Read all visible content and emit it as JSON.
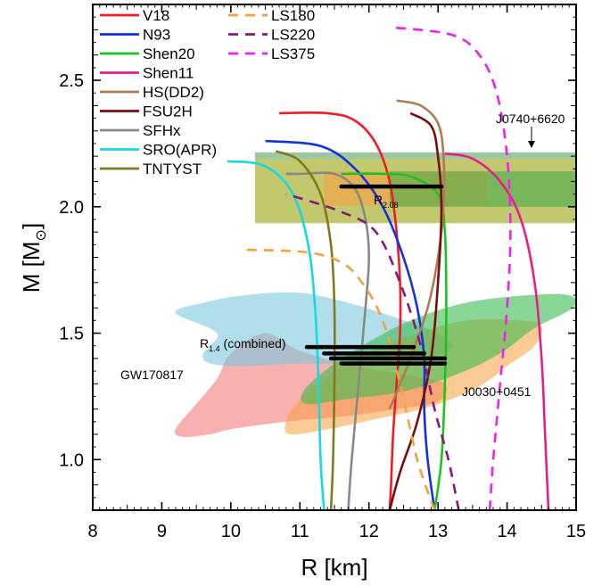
{
  "chart_data": {
    "type": "line",
    "xlabel": "R [km]",
    "ylabel": "M [M",
    "ylabel_sub": "⊙",
    "ylabel_close": "]",
    "xlim": [
      8,
      15
    ],
    "ylim": [
      0.8,
      2.8
    ],
    "xticks": [
      "8",
      "9",
      "10",
      "11",
      "12",
      "13",
      "14",
      "15"
    ],
    "yticks": [
      "1.0",
      "1.5",
      "2.0",
      "2.5"
    ],
    "grid": false,
    "legend_placement": "top-left",
    "series": [
      {
        "name": "V18",
        "color": "#ee1c25",
        "dash": "solid",
        "points": [
          [
            12.3,
            0.8
          ],
          [
            12.32,
            0.9
          ],
          [
            12.35,
            1.1
          ],
          [
            12.4,
            1.3
          ],
          [
            12.45,
            1.5
          ],
          [
            12.45,
            1.7
          ],
          [
            12.4,
            1.9
          ],
          [
            12.3,
            2.1
          ],
          [
            12.1,
            2.25
          ],
          [
            11.8,
            2.34
          ],
          [
            11.4,
            2.37
          ],
          [
            10.7,
            2.37
          ]
        ]
      },
      {
        "name": "N93",
        "color": "#1432dc",
        "dash": "solid",
        "points": [
          [
            12.95,
            0.8
          ],
          [
            12.85,
            1.0
          ],
          [
            12.8,
            1.2
          ],
          [
            12.8,
            1.4
          ],
          [
            12.7,
            1.6
          ],
          [
            12.5,
            1.8
          ],
          [
            12.2,
            2.0
          ],
          [
            11.8,
            2.15
          ],
          [
            11.3,
            2.24
          ],
          [
            10.5,
            2.26
          ]
        ]
      },
      {
        "name": "Shen20",
        "color": "#1ec11e",
        "dash": "solid",
        "points": [
          [
            12.95,
            0.8
          ],
          [
            13.05,
            1.0
          ],
          [
            13.1,
            1.3
          ],
          [
            13.12,
            1.6
          ],
          [
            13.1,
            1.9
          ],
          [
            13.0,
            2.05
          ],
          [
            12.6,
            2.12
          ],
          [
            12.2,
            2.13
          ],
          [
            11.6,
            2.13
          ]
        ]
      },
      {
        "name": "Shen11",
        "color": "#e61e8c",
        "dash": "solid",
        "points": [
          [
            14.6,
            0.8
          ],
          [
            14.55,
            1.1
          ],
          [
            14.5,
            1.4
          ],
          [
            14.4,
            1.7
          ],
          [
            14.2,
            1.95
          ],
          [
            13.9,
            2.1
          ],
          [
            13.5,
            2.19
          ],
          [
            13.1,
            2.21
          ]
        ]
      },
      {
        "name": "HS(DD2)",
        "color": "#b07a54",
        "dash": "solid",
        "points": [
          [
            12.3,
            1.2
          ],
          [
            12.6,
            1.4
          ],
          [
            12.85,
            1.6
          ],
          [
            13.0,
            1.8
          ],
          [
            13.08,
            2.0
          ],
          [
            13.08,
            2.2
          ],
          [
            13.0,
            2.33
          ],
          [
            12.75,
            2.4
          ],
          [
            12.4,
            2.42
          ]
        ]
      },
      {
        "name": "FSU2H",
        "color": "#7a0e0e",
        "dash": "solid",
        "points": [
          [
            12.3,
            0.8
          ],
          [
            12.45,
            0.95
          ],
          [
            12.7,
            1.15
          ],
          [
            12.9,
            1.4
          ],
          [
            13.0,
            1.7
          ],
          [
            13.05,
            2.0
          ],
          [
            13.0,
            2.2
          ],
          [
            12.9,
            2.32
          ],
          [
            12.6,
            2.37
          ]
        ]
      },
      {
        "name": "SFHx",
        "color": "#888888",
        "dash": "solid",
        "points": [
          [
            11.7,
            0.8
          ],
          [
            11.75,
            1.0
          ],
          [
            11.85,
            1.3
          ],
          [
            11.95,
            1.6
          ],
          [
            12.0,
            1.8
          ],
          [
            11.95,
            1.95
          ],
          [
            11.8,
            2.07
          ],
          [
            11.5,
            2.13
          ],
          [
            11.0,
            2.13
          ],
          [
            10.8,
            2.13
          ]
        ]
      },
      {
        "name": "SRO(APR)",
        "color": "#1ad6e6",
        "dash": "solid",
        "points": [
          [
            11.35,
            0.8
          ],
          [
            11.3,
            1.0
          ],
          [
            11.27,
            1.3
          ],
          [
            11.22,
            1.6
          ],
          [
            11.12,
            1.85
          ],
          [
            10.9,
            2.05
          ],
          [
            10.5,
            2.16
          ],
          [
            9.95,
            2.18
          ]
        ]
      },
      {
        "name": "TNTYST",
        "color": "#85781a",
        "dash": "solid",
        "points": [
          [
            11.45,
            0.8
          ],
          [
            11.48,
            1.0
          ],
          [
            11.5,
            1.3
          ],
          [
            11.5,
            1.6
          ],
          [
            11.45,
            1.85
          ],
          [
            11.3,
            2.05
          ],
          [
            11.0,
            2.18
          ],
          [
            10.65,
            2.22
          ]
        ]
      },
      {
        "name": "LS180",
        "color": "#f5a040",
        "dash": "dashed",
        "points": [
          [
            12.95,
            0.8
          ],
          [
            12.7,
            1.0
          ],
          [
            12.45,
            1.3
          ],
          [
            12.2,
            1.55
          ],
          [
            11.9,
            1.7
          ],
          [
            11.6,
            1.78
          ],
          [
            11.1,
            1.82
          ],
          [
            10.2,
            1.83
          ]
        ]
      },
      {
        "name": "LS220",
        "color": "#8a1878",
        "dash": "dashed",
        "points": [
          [
            13.3,
            0.8
          ],
          [
            13.15,
            1.0
          ],
          [
            12.95,
            1.2
          ],
          [
            12.75,
            1.45
          ],
          [
            12.45,
            1.7
          ],
          [
            12.1,
            1.9
          ],
          [
            11.6,
            1.98
          ],
          [
            10.8,
            2.05
          ]
        ]
      },
      {
        "name": "LS375",
        "color": "#f020f0",
        "dash": "dashed",
        "points": [
          [
            13.75,
            0.8
          ],
          [
            13.8,
            1.0
          ],
          [
            13.9,
            1.3
          ],
          [
            14.0,
            1.6
          ],
          [
            14.05,
            1.9
          ],
          [
            14.0,
            2.2
          ],
          [
            13.85,
            2.45
          ],
          [
            13.6,
            2.6
          ],
          [
            13.2,
            2.68
          ],
          [
            12.3,
            2.71
          ]
        ]
      }
    ],
    "regions": [
      {
        "name": "GW170817",
        "color": "#f47c7c",
        "opacity": 0.6,
        "points": [
          [
            10.5,
            1.5
          ],
          [
            11.0,
            1.43
          ],
          [
            11.8,
            1.37
          ],
          [
            12.6,
            1.33
          ],
          [
            13.1,
            1.3
          ],
          [
            13.0,
            1.23
          ],
          [
            12.4,
            1.2
          ],
          [
            11.6,
            1.17
          ],
          [
            10.8,
            1.15
          ],
          [
            10.0,
            1.12
          ],
          [
            9.7,
            1.1
          ],
          [
            9.3,
            1.09
          ],
          [
            9.2,
            1.12
          ],
          [
            9.5,
            1.22
          ],
          [
            9.8,
            1.32
          ],
          [
            10.0,
            1.42
          ]
        ]
      },
      {
        "name": "GW170817_upper",
        "color": "#7cc8dc",
        "opacity": 0.6,
        "points": [
          [
            9.2,
            1.58
          ],
          [
            9.6,
            1.62
          ],
          [
            10.2,
            1.65
          ],
          [
            11.0,
            1.66
          ],
          [
            11.7,
            1.62
          ],
          [
            12.3,
            1.57
          ],
          [
            13.0,
            1.5
          ],
          [
            13.2,
            1.44
          ],
          [
            12.8,
            1.4
          ],
          [
            12.0,
            1.38
          ],
          [
            11.0,
            1.38
          ],
          [
            10.2,
            1.37
          ],
          [
            9.7,
            1.38
          ],
          [
            9.6,
            1.42
          ],
          [
            9.8,
            1.5
          ]
        ]
      },
      {
        "name": "J0030_orange",
        "color": "#f7a040",
        "opacity": 0.55,
        "points": [
          [
            10.85,
            1.1
          ],
          [
            11.4,
            1.12
          ],
          [
            12.1,
            1.16
          ],
          [
            12.9,
            1.21
          ],
          [
            13.6,
            1.29
          ],
          [
            14.0,
            1.37
          ],
          [
            14.4,
            1.45
          ],
          [
            14.5,
            1.53
          ],
          [
            14.2,
            1.55
          ],
          [
            13.4,
            1.55
          ],
          [
            12.6,
            1.49
          ],
          [
            11.9,
            1.41
          ],
          [
            11.3,
            1.31
          ],
          [
            10.95,
            1.22
          ],
          [
            10.8,
            1.15
          ]
        ]
      },
      {
        "name": "J0030_green",
        "color": "#3cba50",
        "opacity": 0.6,
        "points": [
          [
            11.1,
            1.22
          ],
          [
            11.7,
            1.24
          ],
          [
            12.5,
            1.27
          ],
          [
            13.3,
            1.34
          ],
          [
            13.9,
            1.42
          ],
          [
            14.4,
            1.52
          ],
          [
            14.95,
            1.6
          ],
          [
            14.9,
            1.65
          ],
          [
            14.3,
            1.65
          ],
          [
            13.4,
            1.62
          ],
          [
            12.6,
            1.55
          ],
          [
            11.9,
            1.45
          ],
          [
            11.4,
            1.36
          ],
          [
            11.05,
            1.27
          ]
        ]
      }
    ],
    "bands": [
      {
        "name": "J0740_outer",
        "color": "#a8b030",
        "opacity": 0.7,
        "x": [
          10.35,
          15
        ],
        "y": [
          1.935,
          2.215
        ]
      },
      {
        "name": "J0740_cyan",
        "color": "#7ec8c8",
        "opacity": 0.6,
        "x": [
          10.35,
          15
        ],
        "y": [
          2.19,
          2.215
        ]
      },
      {
        "name": "J0740_orange",
        "color": "#f5a545",
        "opacity": 0.65,
        "x": [
          11.35,
          13.7
        ],
        "y": [
          2.005,
          2.14
        ]
      },
      {
        "name": "J0740_green",
        "color": "#3aaa48",
        "opacity": 0.55,
        "x": [
          12.3,
          15
        ],
        "y": [
          2.0,
          2.14
        ]
      }
    ],
    "bars": [
      {
        "x": [
          11.6,
          13.05
        ],
        "y": 2.08
      },
      {
        "x": [
          11.1,
          12.65
        ],
        "y": 1.445
      },
      {
        "x": [
          11.35,
          12.8
        ],
        "y": 1.42
      },
      {
        "x": [
          11.45,
          13.1
        ],
        "y": 1.4
      },
      {
        "x": [
          11.6,
          13.1
        ],
        "y": 1.38
      }
    ],
    "annotations": {
      "j0740": "J0740+6620",
      "r208_main": "R",
      "r208_sub": "2.08",
      "r14_main": "R",
      "r14_sub": "1.4",
      "r14_rest": " (combined)",
      "gw": "GW170817",
      "j0030": "J0030+0451"
    }
  }
}
